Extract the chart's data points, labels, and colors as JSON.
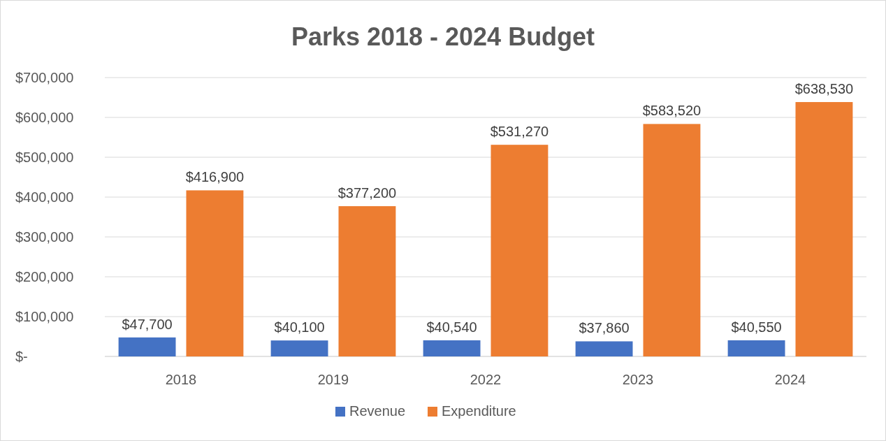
{
  "chart_data": {
    "type": "bar",
    "title": "Parks 2018 - 2024 Budget",
    "categories": [
      "2018",
      "2019",
      "2022",
      "2023",
      "2024"
    ],
    "series": [
      {
        "name": "Revenue",
        "color": "#4472c4",
        "values": [
          47700,
          40100,
          40540,
          37860,
          40550
        ],
        "value_labels": [
          "$47,700",
          "$40,100",
          "$40,540",
          "$37,860",
          "$40,550"
        ]
      },
      {
        "name": "Expenditure",
        "color": "#ed7d31",
        "values": [
          416900,
          377200,
          531270,
          583520,
          638530
        ],
        "value_labels": [
          "$416,900",
          "$377,200",
          "$531,270",
          "$583,520",
          "$638,530"
        ]
      }
    ],
    "ylim": [
      0,
      700000
    ],
    "yticks": [
      {
        "value": 0,
        "label": "$-"
      },
      {
        "value": 100000,
        "label": "$100,000"
      },
      {
        "value": 200000,
        "label": "$200,000"
      },
      {
        "value": 300000,
        "label": "$300,000"
      },
      {
        "value": 400000,
        "label": "$400,000"
      },
      {
        "value": 500000,
        "label": "$500,000"
      },
      {
        "value": 600000,
        "label": "$600,000"
      },
      {
        "value": 700000,
        "label": "$700,000"
      }
    ],
    "grid": "y",
    "legend": "bottom"
  }
}
